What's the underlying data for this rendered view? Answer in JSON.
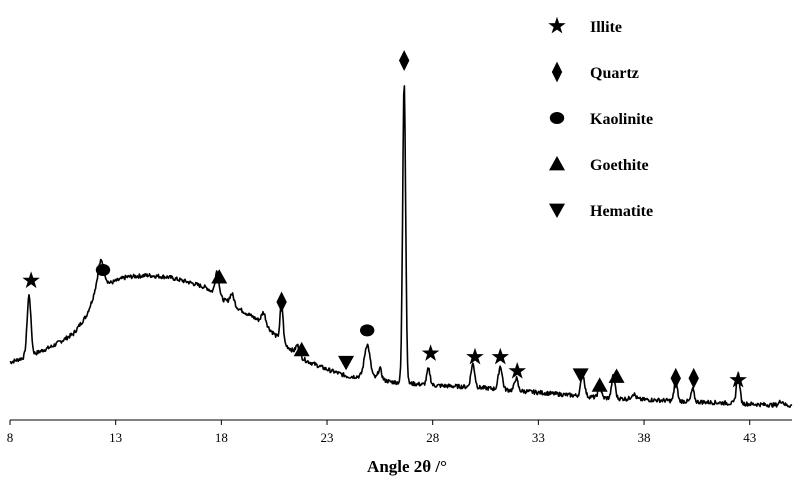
{
  "chart_data": {
    "type": "line",
    "xlabel": "Angle 2θ /°",
    "ylabel": "",
    "xlim": [
      8,
      45
    ],
    "ylim": [
      0,
      100
    ],
    "x_ticks": [
      8,
      13,
      18,
      23,
      28,
      33,
      38,
      43
    ],
    "x_tick_labels": [
      "8",
      "13",
      "18",
      "23",
      "28",
      "33",
      "38",
      "43"
    ],
    "grid": false,
    "line_color": "#000000",
    "legend_position": "top-right",
    "legend": [
      {
        "symbol": "star",
        "label": "Illite"
      },
      {
        "symbol": "diamond",
        "label": "Quartz"
      },
      {
        "symbol": "circle",
        "label": "Kaolinite"
      },
      {
        "symbol": "triangle-up",
        "label": "Goethite"
      },
      {
        "symbol": "triangle-down",
        "label": "Hematite"
      }
    ],
    "series": [
      {
        "baseline": [
          [
            8.0,
            14.0
          ],
          [
            9.0,
            16.0
          ],
          [
            10.0,
            18.5
          ],
          [
            11.0,
            22.0
          ],
          [
            11.6,
            27.0
          ],
          [
            12.0,
            33.0
          ],
          [
            12.6,
            36.0
          ],
          [
            13.5,
            38.0
          ],
          [
            14.5,
            38.5
          ],
          [
            15.5,
            38.0
          ],
          [
            16.5,
            36.5
          ],
          [
            17.3,
            35.0
          ],
          [
            18.0,
            32.0
          ],
          [
            19.0,
            28.5
          ],
          [
            20.0,
            25.0
          ],
          [
            21.0,
            19.0
          ],
          [
            22.0,
            14.5
          ],
          [
            23.0,
            12.0
          ],
          [
            24.0,
            10.0
          ],
          [
            25.0,
            10.0
          ],
          [
            26.0,
            8.5
          ],
          [
            27.0,
            8.0
          ],
          [
            28.0,
            7.5
          ],
          [
            30.0,
            7.0
          ],
          [
            32.0,
            6.0
          ],
          [
            34.0,
            5.0
          ],
          [
            36.0,
            4.0
          ],
          [
            38.0,
            3.5
          ],
          [
            40.0,
            3.0
          ],
          [
            42.0,
            2.5
          ],
          [
            44.0,
            2.0
          ],
          [
            45.0,
            1.8
          ]
        ],
        "peaks": [
          {
            "x": 8.9,
            "h": 17.0,
            "w": 0.09
          },
          {
            "x": 12.3,
            "h": 8.0,
            "w": 0.15
          },
          {
            "x": 17.8,
            "h": 7.0,
            "w": 0.09
          },
          {
            "x": 18.5,
            "h": 3.0,
            "w": 0.1
          },
          {
            "x": 20.0,
            "h": 3.0,
            "w": 0.1
          },
          {
            "x": 20.85,
            "h": 11.0,
            "w": 0.07
          },
          {
            "x": 21.6,
            "h": 2.5,
            "w": 0.08
          },
          {
            "x": 24.9,
            "h": 9.0,
            "w": 0.13
          },
          {
            "x": 25.5,
            "h": 3.0,
            "w": 0.08
          },
          {
            "x": 26.65,
            "h": 85.0,
            "w": 0.07
          },
          {
            "x": 27.8,
            "h": 4.5,
            "w": 0.08
          },
          {
            "x": 29.9,
            "h": 6.5,
            "w": 0.09
          },
          {
            "x": 31.2,
            "h": 6.5,
            "w": 0.09
          },
          {
            "x": 31.95,
            "h": 3.5,
            "w": 0.08
          },
          {
            "x": 35.1,
            "h": 6.0,
            "w": 0.09
          },
          {
            "x": 35.9,
            "h": 4.0,
            "w": 0.07
          },
          {
            "x": 36.55,
            "h": 6.5,
            "w": 0.08
          },
          {
            "x": 37.5,
            "h": 1.5,
            "w": 0.1
          },
          {
            "x": 39.5,
            "h": 6.5,
            "w": 0.07
          },
          {
            "x": 40.3,
            "h": 3.5,
            "w": 0.07
          },
          {
            "x": 42.45,
            "h": 8.5,
            "w": 0.08
          },
          {
            "x": 44.5,
            "h": 1.2,
            "w": 0.1
          }
        ]
      }
    ],
    "markers": [
      {
        "x": 9.0,
        "y": 37,
        "symbol": "star",
        "phase": "Illite"
      },
      {
        "x": 12.4,
        "y": 40,
        "symbol": "circle",
        "phase": "Kaolinite"
      },
      {
        "x": 17.9,
        "y": 38,
        "symbol": "triangle-up",
        "phase": "Goethite"
      },
      {
        "x": 20.85,
        "y": 31,
        "symbol": "diamond",
        "phase": "Quartz"
      },
      {
        "x": 21.8,
        "y": 17.5,
        "symbol": "triangle-up",
        "phase": "Goethite"
      },
      {
        "x": 23.9,
        "y": 14,
        "symbol": "triangle-down",
        "phase": "Hematite"
      },
      {
        "x": 24.9,
        "y": 23,
        "symbol": "circle",
        "phase": "Kaolinite"
      },
      {
        "x": 26.65,
        "y": 99,
        "symbol": "diamond",
        "phase": "Quartz"
      },
      {
        "x": 27.9,
        "y": 16.5,
        "symbol": "star",
        "phase": "Illite"
      },
      {
        "x": 30.0,
        "y": 15.5,
        "symbol": "star",
        "phase": "Illite"
      },
      {
        "x": 31.2,
        "y": 15.5,
        "symbol": "star",
        "phase": "Illite"
      },
      {
        "x": 32.0,
        "y": 11.5,
        "symbol": "star",
        "phase": "Illite"
      },
      {
        "x": 35.0,
        "y": 10.5,
        "symbol": "triangle-down",
        "phase": "Hematite"
      },
      {
        "x": 35.9,
        "y": 7.5,
        "symbol": "triangle-up",
        "phase": "Goethite"
      },
      {
        "x": 36.7,
        "y": 10,
        "symbol": "triangle-up",
        "phase": "Goethite"
      },
      {
        "x": 39.5,
        "y": 9.5,
        "symbol": "diamond",
        "phase": "Quartz"
      },
      {
        "x": 40.35,
        "y": 9.5,
        "symbol": "diamond",
        "phase": "Quartz"
      },
      {
        "x": 42.45,
        "y": 9,
        "symbol": "star",
        "phase": "Illite"
      }
    ]
  }
}
